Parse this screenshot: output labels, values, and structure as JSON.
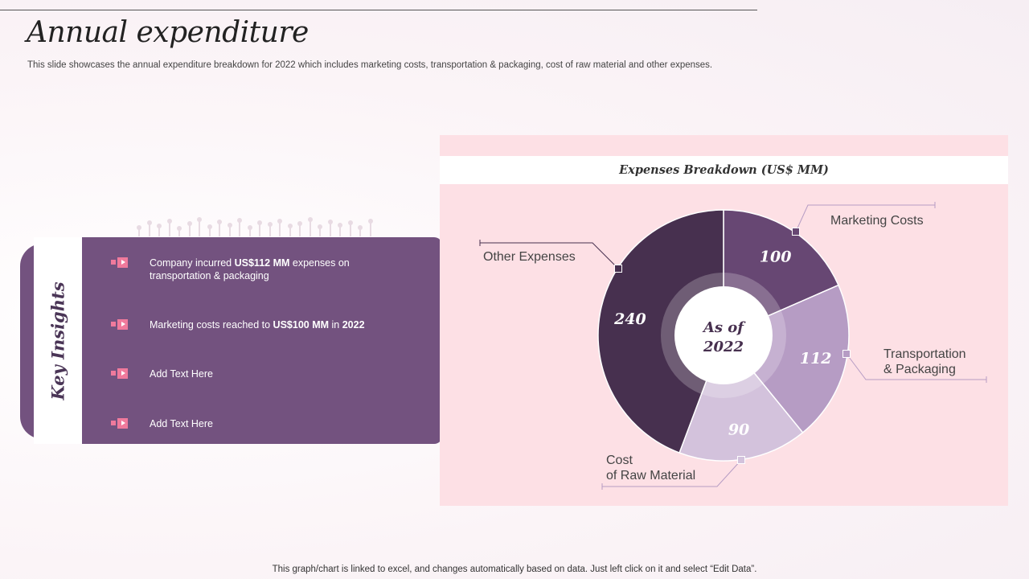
{
  "slide": {
    "title": "Annual expenditure",
    "subtitle": "This slide showcases the annual expenditure breakdown for 2022 which includes marketing costs, transportation & packaging, cost of raw material and other expenses.",
    "footer": "This graph/chart is linked to excel,  and changes automatically based on data. Just left click on it and select “Edit Data”."
  },
  "insights": {
    "heading": "Key Insights",
    "items": [
      {
        "pre": "Company incurred ",
        "bold": "US$112  MM",
        "post": " expenses on transportation  & packaging"
      },
      {
        "pre": "Marketing costs reached to ",
        "bold": "US$100  MM",
        "post": " in ",
        "bold2": "2022"
      },
      {
        "pre": "Add Text Here"
      },
      {
        "pre": "Add Text Here"
      }
    ]
  },
  "chart_data": {
    "type": "pie",
    "title": "Expenses Breakdown (US$ MM)",
    "center_label": [
      "As of",
      "2022"
    ],
    "slices": [
      {
        "label": "Marketing Costs",
        "value": 100,
        "color": "#674773"
      },
      {
        "label": "Transportation & Packaging",
        "value": 112,
        "color": "#b69cc4"
      },
      {
        "label": "Cost of Raw Material",
        "value": 90,
        "color": "#d3c2dc"
      },
      {
        "label": "Other Expenses",
        "value": 240,
        "color": "#47304f"
      }
    ],
    "legend": "none"
  },
  "colors": {
    "panel": "#fde0e5",
    "accent": "#73527f",
    "bullet": "#f07a9c"
  }
}
